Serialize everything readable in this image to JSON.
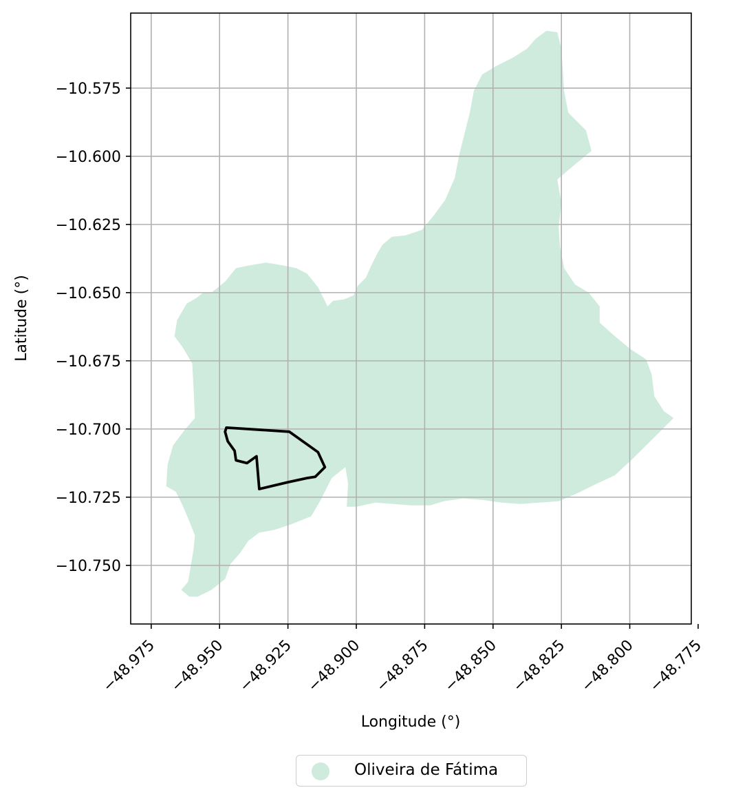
{
  "chart_data": {
    "type": "map",
    "xlabel": "Longitude (°)",
    "ylabel": "Latitude (°)",
    "xlim": [
      -48.9825,
      -48.7775
    ],
    "ylim": [
      -10.7715,
      -10.5475
    ],
    "xticks": [
      -48.975,
      -48.95,
      -48.925,
      -48.9,
      -48.875,
      -48.85,
      -48.825,
      -48.8,
      -48.775
    ],
    "xtick_labels": [
      "−48.975",
      "−48.950",
      "−48.925",
      "−48.900",
      "−48.875",
      "−48.850",
      "−48.825",
      "−48.800",
      "−48.775"
    ],
    "yticks": [
      -10.575,
      -10.6,
      -10.625,
      -10.65,
      -10.675,
      -10.7,
      -10.725,
      -10.75
    ],
    "ytick_labels": [
      "−10.575",
      "−10.600",
      "−10.625",
      "−10.650",
      "−10.675",
      "−10.700",
      "−10.725",
      "−10.750"
    ],
    "grid": true,
    "legend": {
      "placement": "bottom-center",
      "entries": [
        "Oliveira de Fátima"
      ]
    },
    "colors": {
      "region_fill": "#cfebdd",
      "outline": "#000000",
      "grid": "#b0b0b0"
    },
    "region": {
      "name": "Oliveira de Fátima",
      "boundary": [
        [
          -48.9105,
          -10.655
        ],
        [
          -48.9085,
          -10.653
        ],
        [
          -48.9045,
          -10.6525
        ],
        [
          -48.901,
          -10.651
        ],
        [
          -48.8995,
          -10.6475
        ],
        [
          -48.8965,
          -10.6445
        ],
        [
          -48.8945,
          -10.64
        ],
        [
          -48.8925,
          -10.636
        ],
        [
          -48.8905,
          -10.6325
        ],
        [
          -48.887,
          -10.6295
        ],
        [
          -48.882,
          -10.629
        ],
        [
          -48.876,
          -10.627
        ],
        [
          -48.8715,
          -10.6215
        ],
        [
          -48.8675,
          -10.616
        ],
        [
          -48.864,
          -10.608
        ],
        [
          -48.8625,
          -10.6
        ],
        [
          -48.8605,
          -10.592
        ],
        [
          -48.8585,
          -10.584
        ],
        [
          -48.857,
          -10.576
        ],
        [
          -48.854,
          -10.57
        ],
        [
          -48.849,
          -10.567
        ],
        [
          -48.843,
          -10.564
        ],
        [
          -48.8375,
          -10.5605
        ],
        [
          -48.8345,
          -10.557
        ],
        [
          -48.8305,
          -10.554
        ],
        [
          -48.8265,
          -10.5545
        ],
        [
          -48.825,
          -10.5605
        ],
        [
          -48.8245,
          -10.568
        ],
        [
          -48.824,
          -10.576
        ],
        [
          -48.8225,
          -10.584
        ],
        [
          -48.816,
          -10.5905
        ],
        [
          -48.814,
          -10.598
        ],
        [
          -48.82,
          -10.603
        ],
        [
          -48.8265,
          -10.6085
        ],
        [
          -48.825,
          -10.617
        ],
        [
          -48.826,
          -10.626
        ],
        [
          -48.8255,
          -10.633
        ],
        [
          -48.824,
          -10.641
        ],
        [
          -48.82,
          -10.647
        ],
        [
          -48.815,
          -10.65
        ],
        [
          -48.811,
          -10.655
        ],
        [
          -48.811,
          -10.661
        ],
        [
          -48.806,
          -10.6655
        ],
        [
          -48.8,
          -10.6705
        ],
        [
          -48.794,
          -10.6745
        ],
        [
          -48.792,
          -10.68
        ],
        [
          -48.791,
          -10.688
        ],
        [
          -48.7875,
          -10.6935
        ],
        [
          -48.784,
          -10.696
        ],
        [
          -48.792,
          -10.704
        ],
        [
          -48.799,
          -10.711
        ],
        [
          -48.8055,
          -10.717
        ],
        [
          -48.812,
          -10.72
        ],
        [
          -48.819,
          -10.7235
        ],
        [
          -48.826,
          -10.7265
        ],
        [
          -48.833,
          -10.727
        ],
        [
          -48.84,
          -10.7275
        ],
        [
          -48.847,
          -10.727
        ],
        [
          -48.854,
          -10.726
        ],
        [
          -48.861,
          -10.7255
        ],
        [
          -48.868,
          -10.7265
        ],
        [
          -48.873,
          -10.728
        ],
        [
          -48.88,
          -10.728
        ],
        [
          -48.8865,
          -10.7275
        ],
        [
          -48.893,
          -10.727
        ],
        [
          -48.9,
          -10.7285
        ],
        [
          -48.9035,
          -10.7285
        ],
        [
          -48.903,
          -10.72
        ],
        [
          -48.904,
          -10.714
        ],
        [
          -48.909,
          -10.718
        ],
        [
          -48.913,
          -10.726
        ],
        [
          -48.9165,
          -10.732
        ],
        [
          -48.924,
          -10.735
        ],
        [
          -48.93,
          -10.737
        ],
        [
          -48.9355,
          -10.738
        ],
        [
          -48.9395,
          -10.741
        ],
        [
          -48.9425,
          -10.7455
        ],
        [
          -48.946,
          -10.7495
        ],
        [
          -48.948,
          -10.755
        ],
        [
          -48.953,
          -10.759
        ],
        [
          -48.958,
          -10.7615
        ],
        [
          -48.961,
          -10.7615
        ],
        [
          -48.964,
          -10.759
        ],
        [
          -48.9615,
          -10.756
        ],
        [
          -48.9605,
          -10.75
        ],
        [
          -48.9595,
          -10.744
        ],
        [
          -48.959,
          -10.739
        ],
        [
          -48.961,
          -10.734
        ],
        [
          -48.9635,
          -10.728
        ],
        [
          -48.966,
          -10.723
        ],
        [
          -48.9695,
          -10.721
        ],
        [
          -48.969,
          -10.713
        ],
        [
          -48.967,
          -10.706
        ],
        [
          -48.9625,
          -10.7
        ],
        [
          -48.959,
          -10.696
        ],
        [
          -48.9595,
          -10.685
        ],
        [
          -48.96,
          -10.676
        ],
        [
          -48.9635,
          -10.67
        ],
        [
          -48.9665,
          -10.666
        ],
        [
          -48.9655,
          -10.66
        ],
        [
          -48.962,
          -10.654
        ],
        [
          -48.9585,
          -10.652
        ],
        [
          -48.956,
          -10.65
        ],
        [
          -48.953,
          -10.65
        ],
        [
          -48.948,
          -10.646
        ],
        [
          -48.944,
          -10.641
        ],
        [
          -48.939,
          -10.64
        ],
        [
          -48.933,
          -10.639
        ],
        [
          -48.927,
          -10.64
        ],
        [
          -48.922,
          -10.641
        ],
        [
          -48.918,
          -10.643
        ],
        [
          -48.914,
          -10.648
        ]
      ]
    },
    "outline": {
      "boundary": [
        [
          -48.9475,
          -10.6995
        ],
        [
          -48.9245,
          -10.701
        ],
        [
          -48.914,
          -10.7085
        ],
        [
          -48.9115,
          -10.714
        ],
        [
          -48.915,
          -10.7175
        ],
        [
          -48.918,
          -10.718
        ],
        [
          -48.925,
          -10.7195
        ],
        [
          -48.9355,
          -10.722
        ],
        [
          -48.9365,
          -10.71
        ],
        [
          -48.94,
          -10.7125
        ],
        [
          -48.944,
          -10.7115
        ],
        [
          -48.9445,
          -10.708
        ],
        [
          -48.947,
          -10.7045
        ],
        [
          -48.948,
          -10.701
        ]
      ]
    }
  }
}
